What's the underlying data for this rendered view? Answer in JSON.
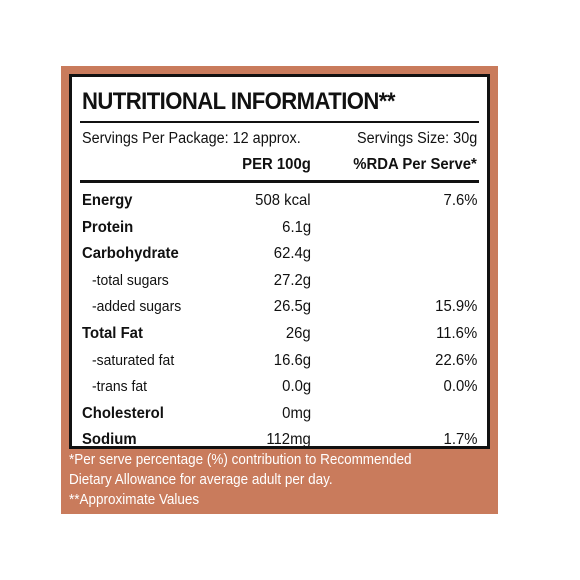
{
  "label": {
    "title": "NUTRITIONAL INFORMATION**",
    "servings_per_package": "Servings Per Package: 12 approx.",
    "serving_size": "Servings Size: 30g",
    "col_per100": "PER 100g",
    "col_rda": "%RDA Per Serve*",
    "rows": [
      {
        "name": "Energy",
        "per100": "508 kcal",
        "rda": "7.6%"
      },
      {
        "name": "Protein",
        "per100": "6.1g",
        "rda": ""
      },
      {
        "name": "Carbohydrate",
        "per100": "62.4g",
        "rda": ""
      },
      {
        "name": "-total sugars",
        "per100": "27.2g",
        "rda": ""
      },
      {
        "name": "-added sugars",
        "per100": "26.5g",
        "rda": "15.9%"
      },
      {
        "name": "Total Fat",
        "per100": "26g",
        "rda": "11.6%"
      },
      {
        "name": "-saturated fat",
        "per100": "16.6g",
        "rda": "22.6%"
      },
      {
        "name": "-trans fat",
        "per100": "0.0g",
        "rda": "0.0%"
      },
      {
        "name": "Cholesterol",
        "per100": "0mg",
        "rda": ""
      },
      {
        "name": "Sodium",
        "per100": "112mg",
        "rda": "1.7%"
      }
    ]
  },
  "footnote": {
    "line1": "*Per serve percentage (%) contribution to Recommended",
    "line2": "Dietary Allowance for average adult per day.",
    "line3": "**Approximate Values"
  },
  "colors": {
    "panel": "#c97b5c",
    "card": "#ffffff",
    "text": "#111111"
  }
}
